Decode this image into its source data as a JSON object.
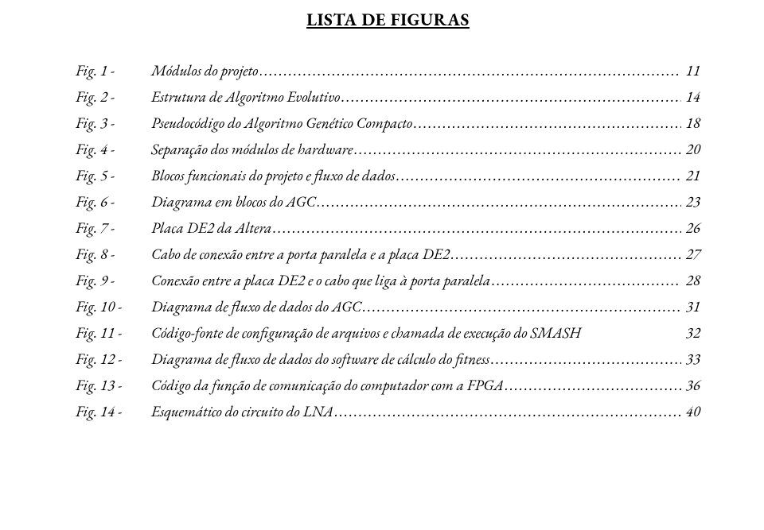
{
  "title": "LISTA DE FIGURAS",
  "font": {
    "family": "Garamond",
    "title_size_pt": 22,
    "entry_size_pt": 19
  },
  "colors": {
    "text": "#000000",
    "background": "#ffffff"
  },
  "style": {
    "entries_italic": true,
    "title_underline": true,
    "title_align": "center"
  },
  "entries": [
    {
      "label": "Fig. 1 -",
      "description": "Módulos do projeto",
      "page": "11",
      "leader": true
    },
    {
      "label": "Fig. 2 -",
      "description": "Estrutura de Algoritmo Evolutivo",
      "page": "14",
      "leader": true
    },
    {
      "label": "Fig. 3 -",
      "description": "Pseudocódigo do Algoritmo Genético Compacto",
      "page": "18",
      "leader": true
    },
    {
      "label": "Fig. 4 -",
      "description": "Separação dos módulos de hardware",
      "page": "20",
      "leader": true
    },
    {
      "label": "Fig. 5 -",
      "description": "Blocos funcionais do projeto e fluxo de dados",
      "page": "21",
      "leader": true
    },
    {
      "label": "Fig. 6 -",
      "description": "Diagrama em blocos do AGC",
      "page": "23",
      "leader": true
    },
    {
      "label": "Fig. 7 -",
      "description": "Placa DE2 da Altera",
      "page": "26",
      "leader": true
    },
    {
      "label": "Fig. 8 -",
      "description": "Cabo de conexão entre a porta paralela e a placa DE2",
      "page": "27",
      "leader": true
    },
    {
      "label": "Fig. 9 -",
      "description": "Conexão entre a placa DE2 e o cabo que liga à porta paralela",
      "page": "28",
      "leader": true
    },
    {
      "label": "Fig. 10 -",
      "description": "Diagrama de fluxo de dados do AGC",
      "page": "31",
      "leader": true
    },
    {
      "label": "Fig. 11 -",
      "description": "Código-fonte de configuração de arquivos e chamada de execução do SMASH",
      "page": "32",
      "leader": false
    },
    {
      "label": "Fig. 12 -",
      "description": "Diagrama de fluxo de dados do software de cálculo do fitness",
      "page": "33",
      "leader": true
    },
    {
      "label": "Fig. 13 -",
      "description": "Código da função de comunicação do computador com a FPGA",
      "page": "36",
      "leader": true
    },
    {
      "label": "Fig. 14 -",
      "description": "Esquemático do circuito do LNA",
      "page": "40",
      "leader": true
    }
  ],
  "leader_char": "."
}
